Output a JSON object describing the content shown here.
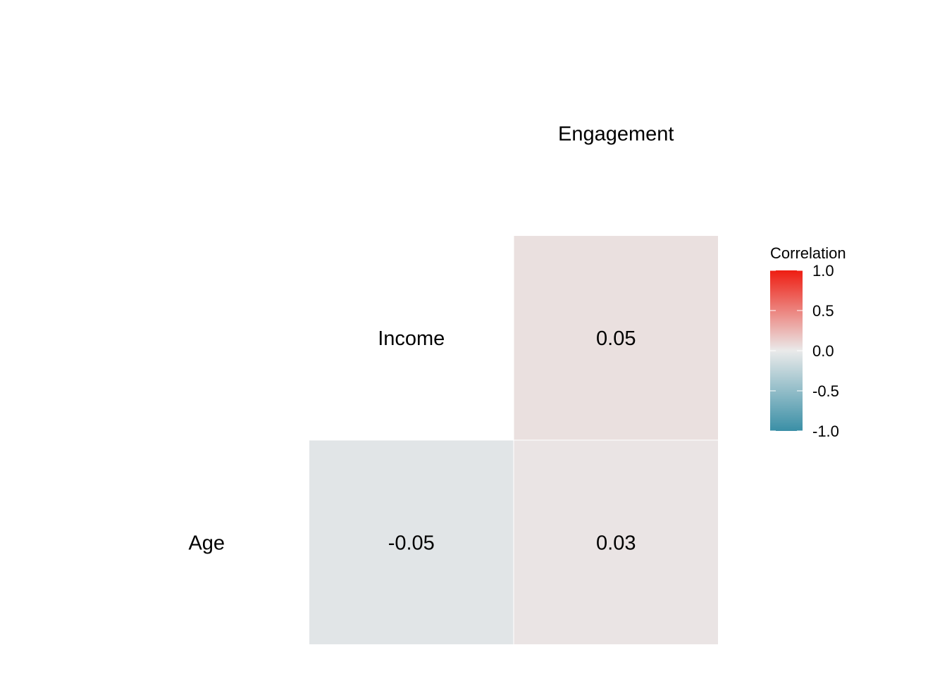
{
  "chart_data": {
    "type": "heatmap",
    "variables": [
      "Age",
      "Income",
      "Engagement"
    ],
    "cells": [
      {
        "row": "Income",
        "col": "Engagement",
        "value": 0.05,
        "label": "0.05",
        "significant": true
      },
      {
        "row": "Age",
        "col": "Income",
        "value": -0.05,
        "label": "-0.05",
        "significant": true
      },
      {
        "row": "Age",
        "col": "Engagement",
        "value": 0.03,
        "label": "0.03",
        "significant": false
      }
    ],
    "legend": {
      "title": "Correlation",
      "placement": "right",
      "range": [
        -1.0,
        1.0
      ],
      "ticks": [
        {
          "value": 1.0,
          "label": "1.0"
        },
        {
          "value": 0.5,
          "label": "0.5"
        },
        {
          "value": 0.0,
          "label": "0.0"
        },
        {
          "value": -0.5,
          "label": "-0.5"
        },
        {
          "value": -1.0,
          "label": "-1.0"
        }
      ],
      "colors": {
        "low": "#3A8FA6",
        "mid": "#EAEAEA",
        "high": "#EE1D12"
      }
    },
    "insignificant_label_color": "#D9D9D9",
    "label_color": "#000000",
    "grid": false
  }
}
